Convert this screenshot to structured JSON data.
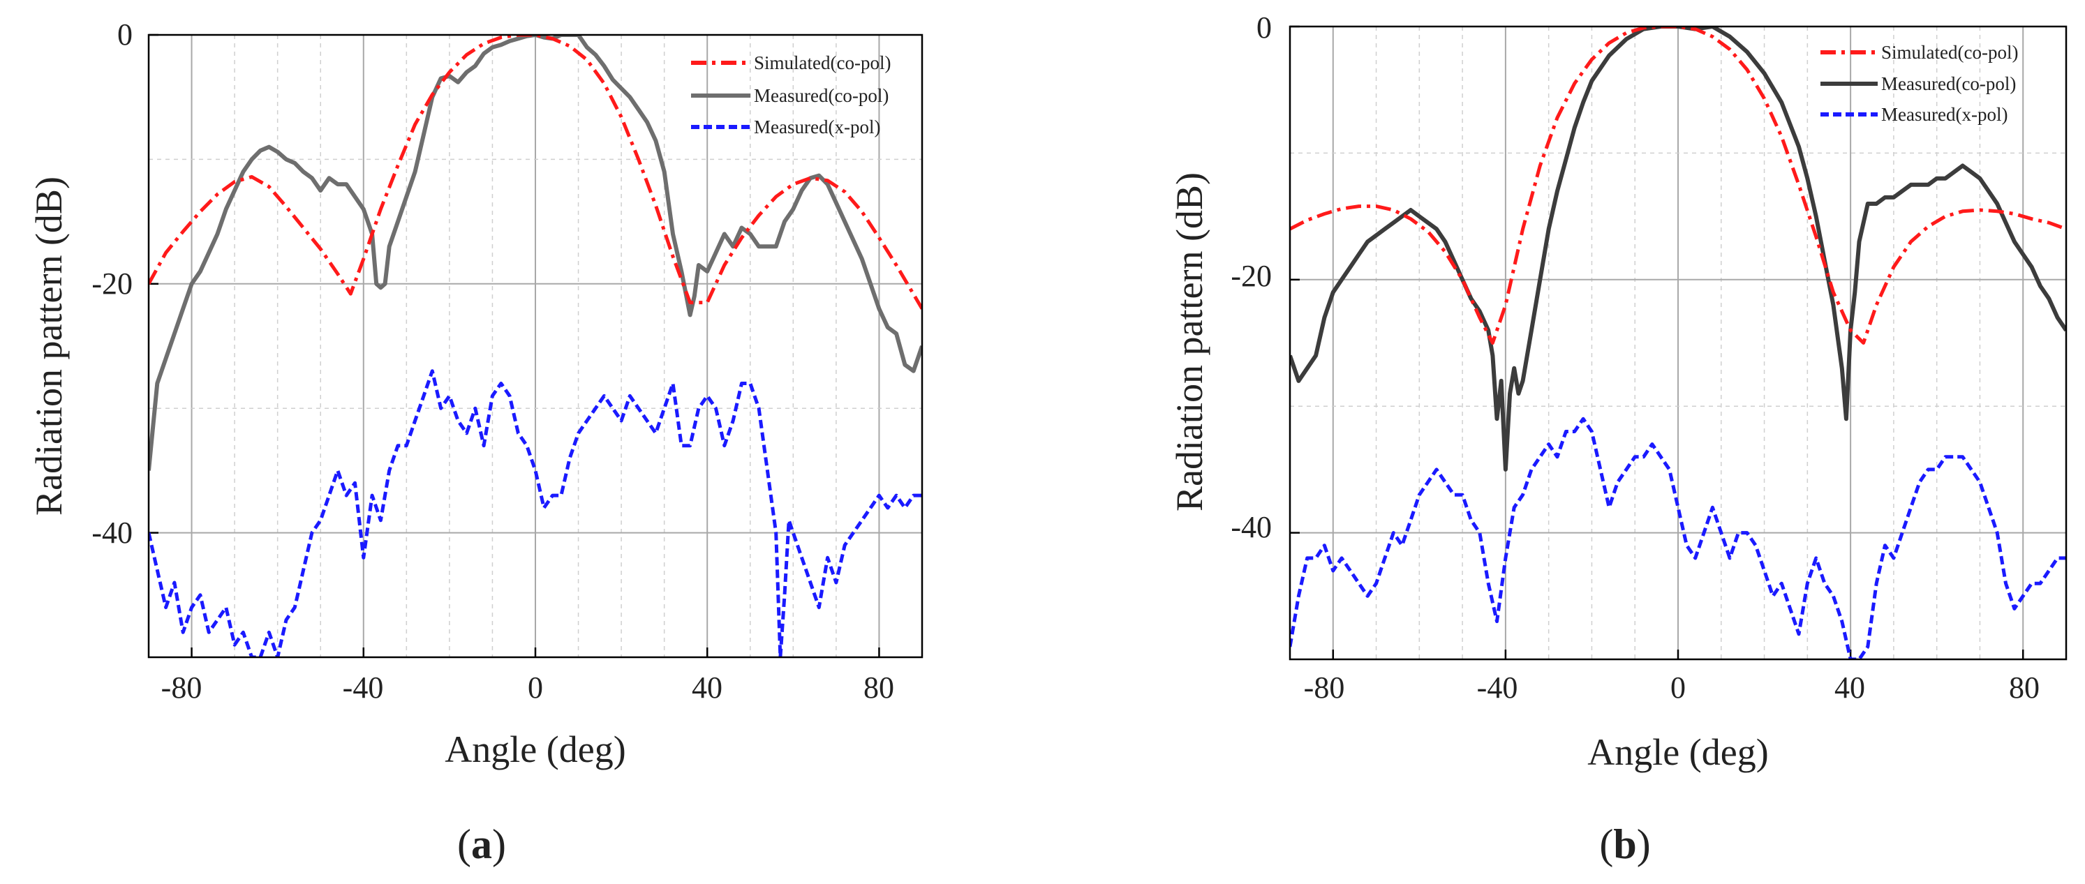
{
  "chart_data": [
    {
      "panel": "(a)",
      "panel_letter": "a",
      "type": "line",
      "xlabel": "Angle (deg)",
      "ylabel": "Radiation pattern (dB)",
      "xlim": [
        -90,
        90
      ],
      "ylim": [
        -50,
        0
      ],
      "xticks": [
        -80,
        -40,
        0,
        40,
        80
      ],
      "yticks": [
        0,
        -20,
        -40
      ],
      "xtick_labels": [
        "-80",
        "-40",
        "0",
        "40",
        "80"
      ],
      "ytick_labels": [
        "0",
        "-20",
        "-40"
      ],
      "grid": true,
      "legend_position": "top-right",
      "series": [
        {
          "name": "Simulated(co-pol)",
          "color": "#ff1a1a",
          "style": "dashdot",
          "x": [
            -90,
            -86,
            -82,
            -78,
            -74,
            -70,
            -66,
            -62,
            -58,
            -54,
            -50,
            -46,
            -43,
            -40,
            -36,
            -32,
            -28,
            -24,
            -20,
            -16,
            -12,
            -8,
            -4,
            0,
            4,
            8,
            12,
            16,
            20,
            24,
            28,
            32,
            36,
            40,
            44,
            48,
            52,
            56,
            60,
            64,
            68,
            72,
            76,
            80,
            84,
            90
          ],
          "y": [
            -20,
            -17.5,
            -15.8,
            -14.2,
            -12.8,
            -11.8,
            -11.4,
            -12.2,
            -13.8,
            -15.5,
            -17.2,
            -19.2,
            -20.8,
            -18,
            -14,
            -10.5,
            -7.2,
            -4.8,
            -3,
            -1.6,
            -0.7,
            -0.2,
            0,
            0,
            -0.3,
            -0.9,
            -2,
            -3.9,
            -6.6,
            -10,
            -13.7,
            -17.8,
            -21.5,
            -21.5,
            -18.5,
            -16.3,
            -14.5,
            -13,
            -12,
            -11.5,
            -11.7,
            -12.6,
            -14.2,
            -16.3,
            -18.5,
            -22
          ]
        },
        {
          "name": "Measured(co-pol)",
          "color": "#6e6e6e",
          "style": "solid",
          "x": [
            -90,
            -88,
            -86,
            -84,
            -82,
            -80,
            -78,
            -76,
            -74,
            -72,
            -70,
            -68,
            -66,
            -64,
            -62,
            -60,
            -58,
            -56,
            -54,
            -52,
            -50,
            -48,
            -46,
            -44,
            -42,
            -40,
            -38,
            -37,
            -36,
            -35,
            -34,
            -33,
            -32,
            -30,
            -28,
            -26,
            -24,
            -22,
            -20,
            -18,
            -16,
            -14,
            -12,
            -10,
            -8,
            -6,
            -4,
            -2,
            0,
            2,
            4,
            6,
            8,
            10,
            12,
            14,
            16,
            18,
            20,
            22,
            24,
            26,
            28,
            30,
            32,
            34,
            36,
            37,
            38,
            40,
            42,
            44,
            46,
            48,
            50,
            52,
            54,
            56,
            58,
            60,
            62,
            64,
            66,
            68,
            70,
            72,
            74,
            76,
            78,
            80,
            82,
            84,
            86,
            88,
            90
          ],
          "y": [
            -35,
            -28,
            -26,
            -24,
            -22,
            -20,
            -19,
            -17.5,
            -16,
            -14,
            -12.5,
            -11,
            -10,
            -9.3,
            -9,
            -9.4,
            -10,
            -10.3,
            -11,
            -11.5,
            -12.5,
            -11.5,
            -12,
            -12,
            -13,
            -14,
            -16,
            -20,
            -20.3,
            -20,
            -17,
            -16,
            -15,
            -13,
            -11,
            -8,
            -5,
            -3.5,
            -3.3,
            -3.8,
            -3,
            -2.5,
            -1.5,
            -1,
            -0.8,
            -0.5,
            -0.3,
            -0.1,
            0,
            -0.2,
            -0.3,
            0,
            0,
            0,
            -1,
            -1.6,
            -2.5,
            -3.6,
            -4.3,
            -5,
            -6,
            -7,
            -8.5,
            -11,
            -16,
            -19,
            -22.5,
            -21,
            -18.5,
            -19,
            -17.5,
            -16,
            -17,
            -15.5,
            -16,
            -17,
            -17,
            -17,
            -15,
            -14,
            -12.5,
            -11.5,
            -11.3,
            -12,
            -13.5,
            -15,
            -16.5,
            -18,
            -20,
            -22,
            -23.5,
            -24,
            -26.5,
            -27,
            -25
          ]
        },
        {
          "name": "Measured(x-pol)",
          "color": "#1a1aff",
          "style": "dashed",
          "x": [
            -90,
            -88,
            -86,
            -84,
            -82,
            -80,
            -78,
            -76,
            -74,
            -72,
            -70,
            -68,
            -66,
            -64,
            -62,
            -60,
            -58,
            -56,
            -54,
            -52,
            -50,
            -48,
            -46,
            -44,
            -42,
            -40,
            -38,
            -36,
            -34,
            -32,
            -30,
            -28,
            -26,
            -24,
            -22,
            -20,
            -18,
            -16,
            -14,
            -12,
            -10,
            -8,
            -6,
            -4,
            -2,
            0,
            2,
            4,
            6,
            8,
            10,
            12,
            14,
            16,
            18,
            20,
            22,
            24,
            26,
            28,
            30,
            32,
            34,
            36,
            38,
            40,
            42,
            44,
            46,
            48,
            50,
            52,
            54,
            56,
            57,
            58,
            59,
            60,
            62,
            64,
            66,
            68,
            70,
            72,
            74,
            76,
            78,
            80,
            82,
            84,
            86,
            88,
            90
          ],
          "y": [
            -40,
            -43,
            -46,
            -44,
            -48,
            -46,
            -45,
            -48,
            -47,
            -46,
            -49,
            -48,
            -50,
            -50,
            -48,
            -50,
            -47,
            -46,
            -43,
            -40,
            -39,
            -37,
            -35,
            -37,
            -36,
            -42,
            -37,
            -39,
            -35,
            -33,
            -33,
            -31,
            -29,
            -27,
            -30,
            -29,
            -31,
            -32,
            -30,
            -33,
            -29,
            -28,
            -29,
            -32,
            -33,
            -35,
            -38,
            -37,
            -37,
            -34,
            -32,
            -31,
            -30,
            -29,
            -30,
            -31,
            -29,
            -30,
            -31,
            -32,
            -30,
            -28,
            -33,
            -33,
            -30,
            -29,
            -30,
            -33,
            -31,
            -28,
            -28,
            -30,
            -35,
            -40,
            -50,
            -45,
            -39,
            -40,
            -42,
            -44,
            -46,
            -42,
            -44,
            -41,
            -40,
            -39,
            -38,
            -37,
            -38,
            -37,
            -38,
            -37,
            -37
          ]
        }
      ]
    },
    {
      "panel": "(b)",
      "panel_letter": "b",
      "type": "line",
      "xlabel": "Angle (deg)",
      "ylabel": "Radiation pattern (dB)",
      "xlim": [
        -90,
        90
      ],
      "ylim": [
        -50,
        0
      ],
      "xticks": [
        -80,
        -40,
        0,
        40,
        80
      ],
      "yticks": [
        0,
        -20,
        -40
      ],
      "xtick_labels": [
        "-80",
        "-40",
        "0",
        "40",
        "80"
      ],
      "ytick_labels": [
        "0",
        "-20",
        "-40"
      ],
      "grid": true,
      "legend_position": "top-right",
      "series": [
        {
          "name": "Simulated(co-pol)",
          "color": "#ff1a1a",
          "style": "dashdot",
          "x": [
            -90,
            -86,
            -82,
            -78,
            -74,
            -70,
            -66,
            -62,
            -58,
            -54,
            -50,
            -46,
            -43,
            -40,
            -36,
            -32,
            -28,
            -24,
            -20,
            -16,
            -12,
            -8,
            -4,
            0,
            4,
            8,
            12,
            16,
            20,
            24,
            28,
            32,
            36,
            40,
            43,
            46,
            50,
            54,
            58,
            62,
            66,
            70,
            74,
            78,
            82,
            86,
            90
          ],
          "y": [
            -16,
            -15.3,
            -14.8,
            -14.4,
            -14.2,
            -14.2,
            -14.5,
            -15.2,
            -16.2,
            -17.8,
            -20,
            -23,
            -25,
            -22,
            -16,
            -11,
            -7.2,
            -4.5,
            -2.6,
            -1.3,
            -0.5,
            -0.1,
            0,
            0,
            -0.2,
            -0.8,
            -1.8,
            -3.4,
            -5.7,
            -8.7,
            -12.5,
            -16.6,
            -21,
            -24,
            -25,
            -22,
            -19,
            -17,
            -15.8,
            -15,
            -14.6,
            -14.5,
            -14.6,
            -14.8,
            -15.2,
            -15.5,
            -16
          ]
        },
        {
          "name": "Measured(co-pol)",
          "color": "#3c3c3c",
          "style": "solid",
          "x": [
            -90,
            -88,
            -86,
            -84,
            -82,
            -80,
            -78,
            -76,
            -74,
            -72,
            -70,
            -68,
            -66,
            -64,
            -62,
            -60,
            -58,
            -56,
            -54,
            -52,
            -50,
            -48,
            -46,
            -44,
            -43,
            -42,
            -41,
            -40,
            -39,
            -38,
            -37,
            -36,
            -34,
            -32,
            -30,
            -28,
            -26,
            -24,
            -22,
            -20,
            -16,
            -12,
            -8,
            -4,
            0,
            4,
            8,
            12,
            16,
            20,
            24,
            28,
            30,
            32,
            34,
            36,
            38,
            39,
            40,
            41,
            42,
            44,
            46,
            48,
            50,
            52,
            54,
            56,
            58,
            60,
            62,
            64,
            66,
            68,
            70,
            72,
            74,
            76,
            78,
            80,
            82,
            84,
            86,
            88,
            90
          ],
          "y": [
            -26,
            -28,
            -27,
            -26,
            -23,
            -21,
            -20,
            -19,
            -18,
            -17,
            -16.5,
            -16,
            -15.5,
            -15,
            -14.5,
            -15,
            -15.5,
            -16,
            -17,
            -18.5,
            -20,
            -21.5,
            -22.5,
            -24,
            -26,
            -31,
            -28,
            -35,
            -29,
            -27,
            -29,
            -28,
            -24,
            -20,
            -16,
            -13,
            -10.5,
            -8,
            -6,
            -4.3,
            -2.3,
            -1,
            -0.2,
            0,
            0,
            -0.2,
            0,
            -0.8,
            -2,
            -3.7,
            -6,
            -9.5,
            -12,
            -15,
            -18.5,
            -22,
            -27,
            -31,
            -24,
            -21,
            -17,
            -14,
            -14,
            -13.5,
            -13.5,
            -13,
            -12.5,
            -12.5,
            -12.5,
            -12,
            -12,
            -11.5,
            -11,
            -11.5,
            -12,
            -13,
            -14,
            -15.5,
            -17,
            -18,
            -19,
            -20.5,
            -21.5,
            -23,
            -24
          ]
        },
        {
          "name": "Measured(x-pol)",
          "color": "#1a1aff",
          "style": "dashed",
          "x": [
            -90,
            -88,
            -86,
            -84,
            -82,
            -80,
            -78,
            -76,
            -74,
            -72,
            -70,
            -68,
            -66,
            -64,
            -62,
            -60,
            -58,
            -56,
            -54,
            -52,
            -50,
            -48,
            -46,
            -44,
            -42,
            -40,
            -38,
            -36,
            -34,
            -32,
            -30,
            -28,
            -26,
            -24,
            -22,
            -20,
            -18,
            -16,
            -14,
            -12,
            -10,
            -8,
            -6,
            -4,
            -2,
            0,
            2,
            4,
            6,
            8,
            10,
            12,
            14,
            16,
            18,
            20,
            22,
            24,
            26,
            28,
            30,
            32,
            34,
            36,
            38,
            40,
            42,
            44,
            46,
            48,
            50,
            52,
            54,
            56,
            58,
            60,
            62,
            64,
            66,
            68,
            70,
            72,
            74,
            76,
            78,
            80,
            82,
            84,
            86,
            88,
            90
          ],
          "y": [
            -49,
            -45,
            -42,
            -42,
            -41,
            -43,
            -42,
            -43,
            -44,
            -45,
            -44,
            -42,
            -40,
            -41,
            -39,
            -37,
            -36,
            -35,
            -36,
            -37,
            -37,
            -39,
            -40,
            -44,
            -47,
            -42,
            -38,
            -37,
            -35,
            -34,
            -33,
            -34,
            -32,
            -32,
            -31,
            -32,
            -35,
            -38,
            -36,
            -35,
            -34,
            -34,
            -33,
            -34,
            -35,
            -38,
            -41,
            -42,
            -40,
            -38,
            -40,
            -42,
            -40,
            -40,
            -41,
            -43,
            -45,
            -44,
            -46,
            -48,
            -44,
            -42,
            -44,
            -45,
            -47,
            -50,
            -50,
            -49,
            -44,
            -41,
            -42,
            -40,
            -38,
            -36,
            -35,
            -35,
            -34,
            -34,
            -34,
            -35,
            -36,
            -38,
            -40,
            -44,
            -46,
            -45,
            -44,
            -44,
            -43,
            -42,
            -42
          ]
        }
      ]
    }
  ]
}
